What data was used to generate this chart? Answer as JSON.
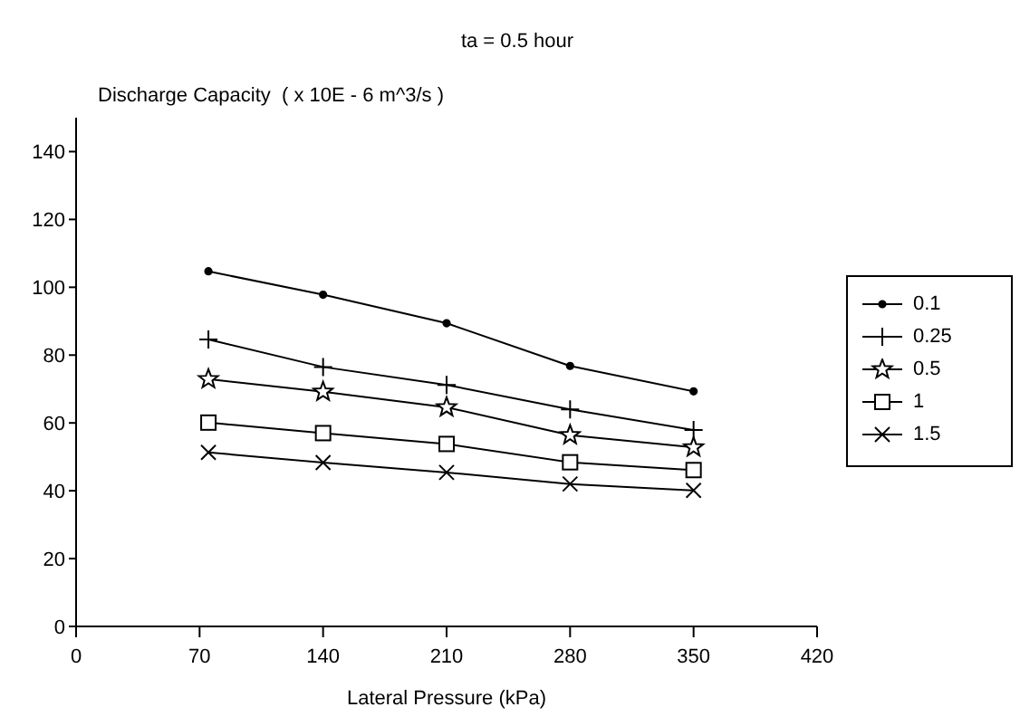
{
  "chart_data": {
    "type": "line",
    "title": "ta = 0.5 hour",
    "ylabel": "Discharge Capacity  ( x 10E - 6 m^3/s )",
    "xlabel": "Lateral Pressure (kPa)",
    "x": [
      75,
      140,
      210,
      280,
      350
    ],
    "xlim": [
      0,
      420
    ],
    "xticks": [
      0,
      70,
      140,
      210,
      280,
      350,
      420
    ],
    "ylim": [
      0,
      150
    ],
    "yticks": [
      0,
      20,
      40,
      60,
      80,
      100,
      120,
      140
    ],
    "grid": false,
    "legend": "right",
    "line_style": "solid",
    "series": [
      {
        "name": "0.1",
        "color": "#000000",
        "marker": "circle",
        "values": [
          104.7,
          97.8,
          89.4,
          76.8,
          69.3
        ]
      },
      {
        "name": "0.25",
        "color": "#000000",
        "marker": "plus",
        "values": [
          84.6,
          76.5,
          71.2,
          64,
          57.9
        ]
      },
      {
        "name": "0.5",
        "color": "#000000",
        "marker": "star",
        "values": [
          72.9,
          69.2,
          64.6,
          56.4,
          52.8
        ]
      },
      {
        "name": "1",
        "color": "#000000",
        "marker": "square",
        "values": [
          60.1,
          57,
          53.8,
          48.4,
          46.1
        ]
      },
      {
        "name": "1.5",
        "color": "#000000",
        "marker": "cross",
        "values": [
          51.3,
          48.3,
          45.4,
          42,
          40.1
        ]
      }
    ]
  }
}
